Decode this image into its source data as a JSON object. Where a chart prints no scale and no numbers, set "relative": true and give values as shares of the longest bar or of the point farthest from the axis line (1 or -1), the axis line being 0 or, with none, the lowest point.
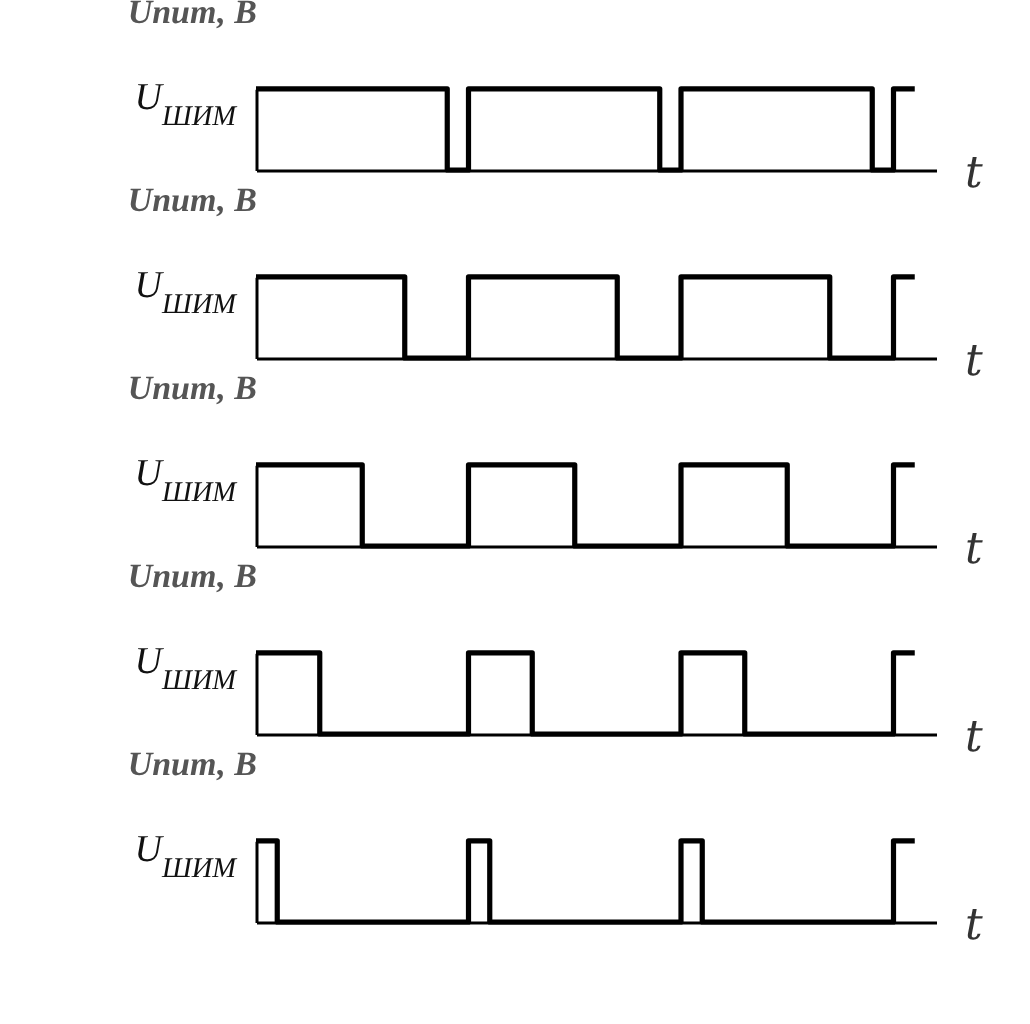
{
  "chart_data": [
    {
      "type": "step",
      "ylabel": "Uпит, В",
      "xlabel": "t",
      "relative": true,
      "color": "#000000",
      "categories": [
        null,
        null,
        null,
        null,
        null,
        null,
        null,
        null,
        null,
        null,
        null,
        null,
        null,
        null,
        null,
        null,
        null,
        null,
        null,
        null,
        null,
        null,
        null,
        null,
        null,
        null,
        null,
        null,
        null,
        null,
        null,
        null
      ],
      "values": [
        1,
        1,
        1,
        1,
        1,
        1,
        1,
        1,
        1,
        0,
        1,
        1,
        1,
        1,
        1,
        1,
        1,
        1,
        1,
        0,
        1,
        1,
        1,
        1,
        1,
        1,
        1,
        1,
        1,
        0,
        1,
        1
      ],
      "annotations": [
        "U$_{ШИМ}$"
      ]
    },
    {
      "type": "step",
      "ylabel": "Uпит, В",
      "xlabel": "t",
      "relative": true,
      "color": "#000000",
      "categories": [
        null,
        null,
        null,
        null,
        null,
        null,
        null,
        null,
        null,
        null,
        null,
        null,
        null,
        null,
        null,
        null,
        null,
        null,
        null,
        null,
        null,
        null,
        null,
        null,
        null,
        null,
        null,
        null,
        null,
        null,
        null,
        null
      ],
      "values": [
        1,
        1,
        1,
        1,
        1,
        1,
        1,
        0,
        0,
        0,
        1,
        1,
        1,
        1,
        1,
        1,
        1,
        0,
        0,
        0,
        1,
        1,
        1,
        1,
        1,
        1,
        1,
        0,
        0,
        0,
        1,
        1
      ],
      "annotations": [
        "U$_{ШИМ}$"
      ]
    },
    {
      "type": "step",
      "ylabel": "Uпит, В",
      "xlabel": "t",
      "relative": true,
      "color": "#000000",
      "categories": [
        null,
        null,
        null,
        null,
        null,
        null,
        null,
        null,
        null,
        null,
        null,
        null,
        null,
        null,
        null,
        null,
        null,
        null,
        null,
        null,
        null,
        null,
        null,
        null,
        null,
        null,
        null,
        null,
        null,
        null,
        null,
        null
      ],
      "values": [
        1,
        1,
        1,
        1,
        1,
        0,
        0,
        0,
        0,
        0,
        1,
        1,
        1,
        1,
        1,
        0,
        0,
        0,
        0,
        0,
        1,
        1,
        1,
        1,
        1,
        0,
        0,
        0,
        0,
        0,
        1,
        1
      ],
      "annotations": [
        "U$_{ШИМ}$"
      ]
    },
    {
      "type": "step",
      "ylabel": "Uпит, В",
      "xlabel": "t",
      "relative": true,
      "color": "#000000",
      "categories": [
        null,
        null,
        null,
        null,
        null,
        null,
        null,
        null,
        null,
        null,
        null,
        null,
        null,
        null,
        null,
        null,
        null,
        null,
        null,
        null,
        null,
        null,
        null,
        null,
        null,
        null,
        null,
        null,
        null,
        null,
        null,
        null
      ],
      "values": [
        1,
        1,
        1,
        0,
        0,
        0,
        0,
        0,
        0,
        0,
        1,
        1,
        1,
        0,
        0,
        0,
        0,
        0,
        0,
        0,
        1,
        1,
        1,
        0,
        0,
        0,
        0,
        0,
        0,
        0,
        1,
        1
      ],
      "annotations": [
        "U$_{ШИМ}$"
      ]
    },
    {
      "type": "step",
      "ylabel": "Uпит, В",
      "xlabel": "t",
      "relative": true,
      "color": "#000000",
      "categories": [
        null,
        null,
        null,
        null,
        null,
        null,
        null,
        null,
        null,
        null,
        null,
        null,
        null,
        null,
        null,
        null,
        null,
        null,
        null,
        null,
        null,
        null,
        null,
        null,
        null,
        null,
        null,
        null,
        null,
        null,
        null,
        null
      ],
      "values": [
        1,
        0,
        0,
        0,
        0,
        0,
        0,
        0,
        0,
        0,
        1,
        0,
        0,
        0,
        0,
        0,
        0,
        0,
        0,
        0,
        1,
        0,
        0,
        0,
        0,
        0,
        0,
        0,
        0,
        0,
        1,
        1
      ],
      "annotations": [
        "U$_{ШИМ}$"
      ]
    }
  ]
}
